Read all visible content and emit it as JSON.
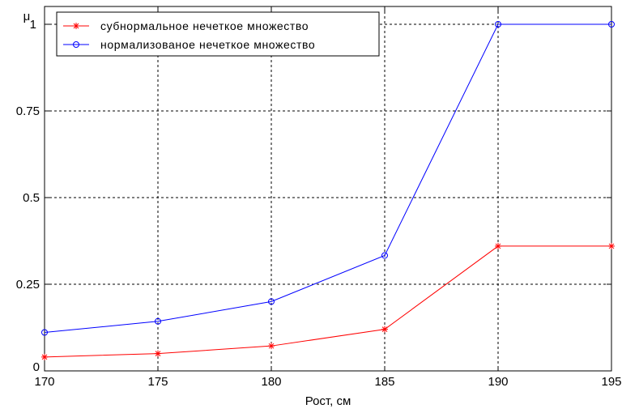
{
  "chart_data": {
    "type": "line",
    "xlabel": "Рост, см",
    "ylabel": "μ",
    "x": [
      170,
      175,
      180,
      185,
      190,
      195
    ],
    "xlim": [
      170,
      195
    ],
    "ylim": [
      0,
      1
    ],
    "xticks": [
      "170",
      "175",
      "180",
      "185",
      "190",
      "195"
    ],
    "yticks": [
      "0",
      "0.25",
      "0.5",
      "0.75",
      "1"
    ],
    "grid": true,
    "legend_position": "top-left",
    "series": [
      {
        "name": "субнормальное нечеткое множество",
        "values": [
          0.04,
          0.05,
          0.072,
          0.12,
          0.36,
          0.36
        ],
        "color": "#ff0000",
        "marker": "asterisk"
      },
      {
        "name": "нормализованое нечеткое множество",
        "values": [
          0.111,
          0.143,
          0.2,
          0.333,
          1.0,
          1.0
        ],
        "color": "#0000ff",
        "marker": "circle"
      }
    ]
  }
}
